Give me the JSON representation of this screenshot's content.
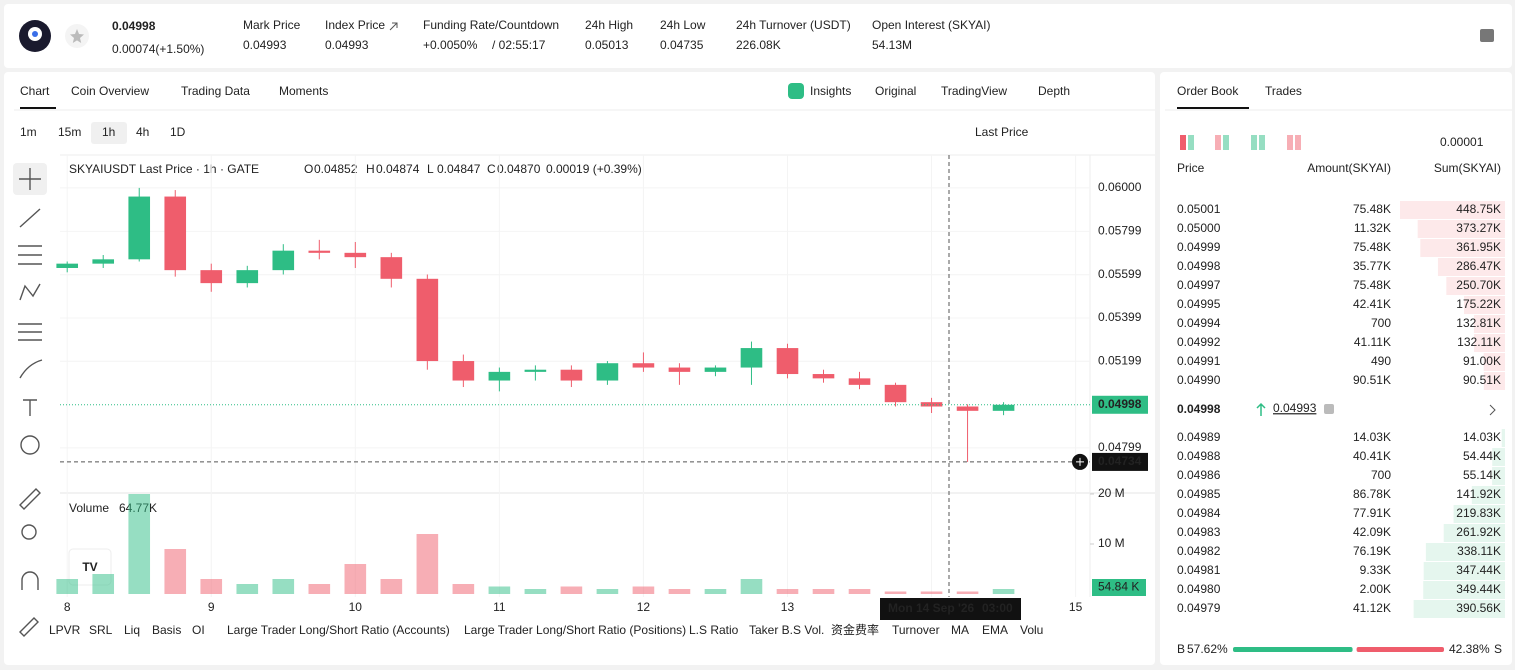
{
  "header": {
    "price": "0.04998",
    "change": "0.00074(+1.50%)",
    "stats": [
      {
        "label": "Mark Price",
        "value": "0.04993"
      },
      {
        "label": "Index Price",
        "value": "0.04993"
      },
      {
        "label": "Funding Rate/Countdown",
        "value": "+0.0050%",
        "extra": "/ 02:55:17"
      },
      {
        "label": "24h High",
        "value": "0.05013"
      },
      {
        "label": "24h Low",
        "value": "0.04735"
      },
      {
        "label": "24h Turnover (USDT)",
        "value": "226.08K"
      },
      {
        "label": "Open Interest (SKYAI)",
        "value": "54.13M"
      }
    ]
  },
  "tabs": [
    "Chart",
    "Coin Overview",
    "Trading Data",
    "Moments"
  ],
  "view_tabs": [
    "Insights",
    "Original",
    "TradingView",
    "Depth"
  ],
  "intervals": [
    "1m",
    "15m",
    "1h",
    "4h",
    "1D"
  ],
  "price_type": "Last Price",
  "legend": {
    "symbol": "SKYAIUSDT Last Price · 1h · GATE",
    "ohlc": [
      {
        "k": "O",
        "v": "0.04852"
      },
      {
        "k": "H",
        "v": "0.04874"
      },
      {
        "k": "L",
        "v": "0.04847"
      },
      {
        "k": "C",
        "v": "0.04870"
      }
    ],
    "change": "0.00019 (+0.39%)",
    "volume": "Volume",
    "volume_value": "64.77K"
  },
  "overlays": {
    "last_price": "0.04998",
    "cross_price": "0.04734",
    "volume_box": "54.84 K",
    "cross_date": "Mon 14 Sep '26",
    "cross_time": "03:00"
  },
  "indicators": [
    "LPVR",
    "SRL",
    "Liq",
    "Basis",
    "OI",
    "Large Trader Long/Short Ratio (Accounts)",
    "Large Trader Long/Short Ratio (Positions)",
    "L.S Ratio",
    "Taker B.S Vol.",
    "资金费率",
    "Turnover",
    "MA",
    "EMA",
    "Volu"
  ],
  "chart_data": {
    "type": "candlestick",
    "colors": {
      "up": "#2ebd85",
      "down": "#ef5d6c"
    },
    "x": [
      8,
      8.25,
      8.5,
      8.75,
      9,
      9.25,
      9.5,
      9.75,
      10,
      10.25,
      10.5,
      10.75,
      11,
      11.25,
      11.5,
      11.75,
      12,
      12.25,
      12.5,
      12.75,
      13,
      13.25,
      13.5,
      13.75,
      14,
      14.25,
      14.5
    ],
    "open": [
      0.0563,
      0.0565,
      0.0567,
      0.0596,
      0.0562,
      0.0556,
      0.0562,
      0.0571,
      0.057,
      0.0568,
      0.0558,
      0.052,
      0.0511,
      0.0515,
      0.0516,
      0.0511,
      0.0519,
      0.0517,
      0.0515,
      0.0517,
      0.0526,
      0.0514,
      0.0512,
      0.0509,
      0.0501,
      0.0499,
      0.0497
    ],
    "high": [
      0.0566,
      0.0569,
      0.06,
      0.0599,
      0.0565,
      0.0564,
      0.0574,
      0.0576,
      0.0575,
      0.057,
      0.056,
      0.0523,
      0.0517,
      0.0518,
      0.0518,
      0.052,
      0.0524,
      0.0519,
      0.0518,
      0.0529,
      0.0528,
      0.0516,
      0.0515,
      0.051,
      0.0503,
      0.05,
      0.0501
    ],
    "low": [
      0.0561,
      0.0563,
      0.0566,
      0.0559,
      0.0552,
      0.0554,
      0.056,
      0.0567,
      0.0563,
      0.0554,
      0.0516,
      0.0508,
      0.0506,
      0.0511,
      0.0508,
      0.0509,
      0.0515,
      0.0509,
      0.0513,
      0.0509,
      0.0512,
      0.051,
      0.0507,
      0.0499,
      0.0496,
      0.04734,
      0.0495
    ],
    "close": [
      0.0565,
      0.0567,
      0.0596,
      0.0562,
      0.0556,
      0.0562,
      0.0571,
      0.057,
      0.0568,
      0.0558,
      0.052,
      0.0511,
      0.0515,
      0.0516,
      0.0511,
      0.0519,
      0.0517,
      0.0515,
      0.0517,
      0.0526,
      0.0514,
      0.0512,
      0.0509,
      0.0501,
      0.0499,
      0.0497,
      0.04998
    ],
    "volume": [
      3,
      4,
      20,
      9,
      3,
      2,
      3,
      2,
      6,
      3,
      12,
      2,
      1.5,
      1,
      1.5,
      1,
      1.5,
      1,
      1,
      3,
      1,
      1,
      1,
      0.5,
      0.5,
      0.5,
      1
    ],
    "xlim": [
      7.95,
      15.1
    ],
    "xticks": [
      8,
      9,
      10,
      11,
      12,
      13,
      14,
      15
    ],
    "ylim": [
      0.04595,
      0.06152
    ],
    "yticks": [
      {
        "value": 0.06,
        "label": "0.06000"
      },
      {
        "value": 0.05799,
        "label": "0.05799"
      },
      {
        "value": 0.05599,
        "label": "0.05599"
      },
      {
        "value": 0.05399,
        "label": "0.05399"
      },
      {
        "value": 0.05199,
        "label": "0.05199"
      },
      {
        "value": 0.04799,
        "label": "0.04799"
      }
    ],
    "y2lim": [
      0,
      20.2
    ],
    "y2ticks": [
      {
        "value": 20,
        "label": "20 M"
      },
      {
        "value": 10,
        "label": "10 M"
      }
    ]
  },
  "order_book": {
    "tabs": [
      "Order Book",
      "Trades"
    ],
    "precision": "0.00001",
    "columns": [
      "Price",
      "Amount(SKYAI)",
      "Sum(SKYAI)"
    ],
    "asks": [
      {
        "price": "0.05001",
        "amount": "75.48K",
        "sum": {
          "value": 448750,
          "label": "448.75K"
        }
      },
      {
        "price": "0.05000",
        "amount": "11.32K",
        "sum": {
          "value": 373270,
          "label": "373.27K"
        }
      },
      {
        "price": "0.04999",
        "amount": "75.48K",
        "sum": {
          "value": 361950,
          "label": "361.95K"
        }
      },
      {
        "price": "0.04998",
        "amount": "35.77K",
        "sum": {
          "value": 286470,
          "label": "286.47K"
        }
      },
      {
        "price": "0.04997",
        "amount": "75.48K",
        "sum": {
          "value": 250700,
          "label": "250.70K"
        }
      },
      {
        "price": "0.04995",
        "amount": "42.41K",
        "sum": {
          "value": 175220,
          "label": "175.22K"
        }
      },
      {
        "price": "0.04994",
        "amount": "700",
        "sum": {
          "value": 132810,
          "label": "132.81K"
        }
      },
      {
        "price": "0.04992",
        "amount": "41.11K",
        "sum": {
          "value": 132110,
          "label": "132.11K"
        }
      },
      {
        "price": "0.04991",
        "amount": "490",
        "sum": {
          "value": 91000,
          "label": "91.00K"
        }
      },
      {
        "price": "0.04990",
        "amount": "90.51K",
        "sum": {
          "value": 90510,
          "label": "90.51K"
        }
      }
    ],
    "mid": {
      "price": "0.04998",
      "mark": "0.04993"
    },
    "bids": [
      {
        "price": "0.04989",
        "amount": "14.03K",
        "sum": {
          "value": 14030,
          "label": "14.03K"
        }
      },
      {
        "price": "0.04988",
        "amount": "40.41K",
        "sum": {
          "value": 54440,
          "label": "54.44K"
        }
      },
      {
        "price": "0.04986",
        "amount": "700",
        "sum": {
          "value": 55140,
          "label": "55.14K"
        }
      },
      {
        "price": "0.04985",
        "amount": "86.78K",
        "sum": {
          "value": 141920,
          "label": "141.92K"
        }
      },
      {
        "price": "0.04984",
        "amount": "77.91K",
        "sum": {
          "value": 219830,
          "label": "219.83K"
        }
      },
      {
        "price": "0.04983",
        "amount": "42.09K",
        "sum": {
          "value": 261920,
          "label": "261.92K"
        }
      },
      {
        "price": "0.04982",
        "amount": "76.19K",
        "sum": {
          "value": 338110,
          "label": "338.11K"
        }
      },
      {
        "price": "0.04981",
        "amount": "9.33K",
        "sum": {
          "value": 347440,
          "label": "347.44K"
        }
      },
      {
        "price": "0.04980",
        "amount": "2.00K",
        "sum": {
          "value": 349440,
          "label": "349.44K"
        }
      },
      {
        "price": "0.04979",
        "amount": "41.12K",
        "sum": {
          "value": 390560,
          "label": "390.56K"
        }
      }
    ],
    "ratio": {
      "buy_label": "B",
      "buy": {
        "value": 57.62,
        "label": "57.62%"
      },
      "sell": {
        "value": 42.38,
        "label": "42.38%"
      },
      "sell_label": "S"
    }
  }
}
